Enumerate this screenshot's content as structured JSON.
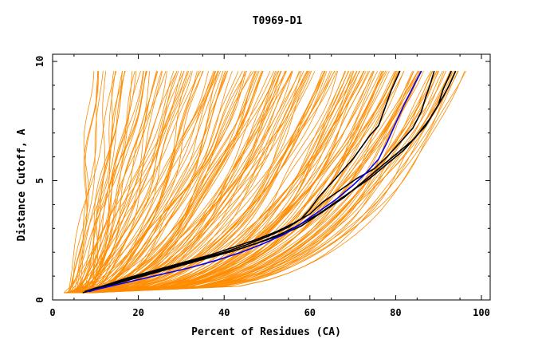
{
  "chart_data": {
    "type": "line",
    "title": "T0969-D1",
    "xlabel": "Percent of Residues (CA)",
    "ylabel": "Distance Cutoff, A",
    "xlim": [
      0,
      100
    ],
    "ylim": [
      0,
      10
    ],
    "x_ticks": [
      0,
      20,
      40,
      60,
      80,
      100
    ],
    "y_ticks": [
      0,
      5,
      10
    ],
    "x_tick_labels": [
      "0",
      "20",
      "40",
      "60",
      "80",
      "100"
    ],
    "y_tick_labels": [
      "0",
      "5",
      "10"
    ],
    "grid": false,
    "legend": "none",
    "colors": {
      "background_curves": "#ff8c00",
      "highlight_black": "#000000",
      "highlight_blue": "#0000ff"
    },
    "series": [
      {
        "name": "highlight-black-1",
        "color": "#000000",
        "points": [
          [
            7.5,
            0.35
          ],
          [
            10,
            0.5
          ],
          [
            15,
            0.75
          ],
          [
            20,
            1.0
          ],
          [
            25,
            1.25
          ],
          [
            30,
            1.5
          ],
          [
            35,
            1.75
          ],
          [
            40,
            2.0
          ],
          [
            45,
            2.3
          ],
          [
            50,
            2.65
          ],
          [
            55,
            3.05
          ],
          [
            58,
            3.4
          ],
          [
            60,
            3.8
          ],
          [
            62,
            4.3
          ],
          [
            65,
            4.9
          ],
          [
            68,
            5.5
          ],
          [
            70,
            5.9
          ],
          [
            72,
            6.4
          ],
          [
            74,
            6.9
          ],
          [
            76,
            7.3
          ],
          [
            77,
            7.8
          ],
          [
            78,
            8.3
          ],
          [
            79,
            8.8
          ],
          [
            80,
            9.2
          ],
          [
            81,
            9.6
          ]
        ]
      },
      {
        "name": "highlight-black-2",
        "color": "#000000",
        "points": [
          [
            8,
            0.35
          ],
          [
            12,
            0.6
          ],
          [
            17,
            0.9
          ],
          [
            22,
            1.15
          ],
          [
            27,
            1.4
          ],
          [
            32,
            1.65
          ],
          [
            37,
            1.9
          ],
          [
            42,
            2.2
          ],
          [
            47,
            2.5
          ],
          [
            52,
            2.85
          ],
          [
            56,
            3.2
          ],
          [
            60,
            3.6
          ],
          [
            63,
            4.1
          ],
          [
            67,
            4.6
          ],
          [
            71,
            5.1
          ],
          [
            75,
            5.5
          ],
          [
            78,
            6.0
          ],
          [
            81,
            6.6
          ],
          [
            84,
            7.2
          ],
          [
            86,
            7.9
          ],
          [
            87,
            8.5
          ],
          [
            88,
            9.0
          ],
          [
            89,
            9.6
          ]
        ]
      },
      {
        "name": "highlight-black-3",
        "color": "#000000",
        "points": [
          [
            7,
            0.3
          ],
          [
            12,
            0.55
          ],
          [
            18,
            0.85
          ],
          [
            24,
            1.15
          ],
          [
            30,
            1.45
          ],
          [
            36,
            1.75
          ],
          [
            42,
            2.05
          ],
          [
            48,
            2.4
          ],
          [
            53,
            2.75
          ],
          [
            57,
            3.1
          ],
          [
            62,
            3.6
          ],
          [
            66,
            4.1
          ],
          [
            70,
            4.6
          ],
          [
            74,
            5.1
          ],
          [
            78,
            5.7
          ],
          [
            82,
            6.3
          ],
          [
            85,
            6.9
          ],
          [
            88,
            7.6
          ],
          [
            90,
            8.2
          ],
          [
            91,
            8.8
          ],
          [
            92,
            9.2
          ],
          [
            93,
            9.6
          ]
        ]
      },
      {
        "name": "highlight-black-4",
        "color": "#000000",
        "points": [
          [
            8.5,
            0.35
          ],
          [
            13,
            0.6
          ],
          [
            19,
            0.9
          ],
          [
            25,
            1.2
          ],
          [
            31,
            1.5
          ],
          [
            37,
            1.8
          ],
          [
            43,
            2.1
          ],
          [
            48,
            2.4
          ],
          [
            53,
            2.7
          ],
          [
            58,
            3.1
          ],
          [
            63,
            3.7
          ],
          [
            68,
            4.3
          ],
          [
            72,
            4.9
          ],
          [
            76,
            5.5
          ],
          [
            80,
            6.1
          ],
          [
            84,
            6.7
          ],
          [
            87,
            7.3
          ],
          [
            89,
            7.9
          ],
          [
            91,
            8.5
          ],
          [
            92.5,
            9.0
          ],
          [
            94,
            9.6
          ]
        ]
      },
      {
        "name": "highlight-blue",
        "color": "#0000ff",
        "points": [
          [
            8,
            0.35
          ],
          [
            14,
            0.6
          ],
          [
            20,
            0.85
          ],
          [
            26,
            1.1
          ],
          [
            32,
            1.35
          ],
          [
            38,
            1.65
          ],
          [
            44,
            2.0
          ],
          [
            49,
            2.35
          ],
          [
            54,
            2.75
          ],
          [
            58,
            3.2
          ],
          [
            62,
            3.7
          ],
          [
            66,
            4.2
          ],
          [
            70,
            4.8
          ],
          [
            73,
            5.3
          ],
          [
            76,
            5.9
          ],
          [
            78,
            6.6
          ],
          [
            80,
            7.4
          ],
          [
            82,
            8.2
          ],
          [
            84,
            8.9
          ],
          [
            86,
            9.6
          ]
        ]
      }
    ]
  }
}
